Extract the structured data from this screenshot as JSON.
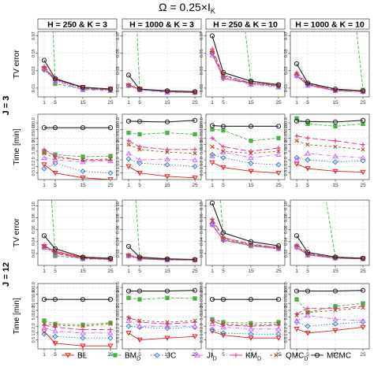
{
  "chart_data": {
    "type": "line",
    "title": "Ω = 0.25×I",
    "title_subscript": "K",
    "x": [
      1,
      5,
      15,
      25
    ],
    "x_ticks": [
      "1",
      "5",
      "15",
      "25"
    ],
    "columns": [
      "H = 250 & K = 3",
      "H = 1000 & K = 3",
      "H = 250 & K = 10",
      "H = 1000 & K = 10"
    ],
    "row_groups": [
      {
        "label": "J = 3",
        "rows": [
          0,
          1
        ]
      },
      {
        "label": "J = 12",
        "rows": [
          2,
          3
        ]
      }
    ],
    "rows": [
      {
        "metric": "tv",
        "ylabel": "TV error",
        "scale": "linear",
        "ylim": [
          0.0,
          0.075
        ],
        "ticks": [
          0.01,
          0.03,
          0.05,
          0.07
        ],
        "tick_labels": [
          "0.01",
          "0.03",
          "0.05",
          "0.07"
        ]
      },
      {
        "metric": "time",
        "ylabel": "Time [min]",
        "scale": "log",
        "ylim": [
          0.25,
          250
        ],
        "ticks": [
          0.5,
          1,
          2,
          5,
          10,
          20,
          50,
          100
        ],
        "tick_labels": [
          "0.5",
          "1.0",
          "2.0",
          "5.0",
          "10.0",
          "20.0",
          "50.0",
          "100.0"
        ]
      },
      {
        "metric": "tv",
        "ylabel": "TV error",
        "scale": "linear",
        "ylim": [
          0.0,
          0.11
        ],
        "ticks": [
          0.02,
          0.04,
          0.06,
          0.08,
          0.1
        ],
        "tick_labels": [
          "0.02",
          "0.04",
          "0.06",
          "0.08",
          "0.10"
        ]
      },
      {
        "metric": "time",
        "ylabel": "Time [min]",
        "scale": "log",
        "ylim": [
          0.2,
          150
        ],
        "ticks": [
          0.5,
          1,
          2,
          5,
          10,
          20,
          50,
          100
        ],
        "tick_labels": [
          "0.5",
          "1.0",
          "2.0",
          "5.0",
          "10.0",
          "20.0",
          "50.0",
          "100.0"
        ]
      }
    ],
    "series_styles": [
      {
        "name": "BL",
        "color": "#e41a1c",
        "dash": "",
        "marker": "triangle-down"
      },
      {
        "name": "BM",
        "sub": "D",
        "color": "#4daf4a",
        "dash": "4 2",
        "marker": "square"
      },
      {
        "name": "JC",
        "color": "#377eb8",
        "dash": "1.5 2",
        "marker": "diamond"
      },
      {
        "name": "JI",
        "sub": "D",
        "color": "#cc66ff",
        "dash": "5 2 1 2",
        "marker": "triangle-up"
      },
      {
        "name": "KM",
        "sub": "D",
        "color": "#e7298a",
        "dash": "7 3",
        "marker": "plus"
      },
      {
        "name": "QMC",
        "sub": "D",
        "color": "#a65628",
        "dash": "3 3",
        "marker": "cross"
      },
      {
        "name": "MCMC",
        "color": "#222222",
        "dash": "",
        "marker": "circle"
      }
    ],
    "panels": [
      [
        [
          [
            0.032,
            0.02,
            0.011,
            0.009
          ],
          [
            0.32,
            0.015,
            0.009,
            0.008
          ],
          [
            0.031,
            0.019,
            0.009,
            0.008
          ],
          [
            0.033,
            0.018,
            0.008,
            0.007
          ],
          [
            0.035,
            0.02,
            0.01,
            0.008
          ],
          [
            0.033,
            0.021,
            0.01,
            0.008
          ],
          [
            0.042,
            0.021,
            0.011,
            0.009
          ]
        ],
        [
          [
            0.013,
            0.009,
            0.006,
            0.005
          ],
          [
            0.3,
            0.008,
            0.006,
            0.005
          ],
          [
            0.013,
            0.008,
            0.006,
            0.005
          ],
          [
            0.013,
            0.008,
            0.005,
            0.005
          ],
          [
            0.014,
            0.009,
            0.006,
            0.005
          ],
          [
            0.013,
            0.009,
            0.006,
            0.005
          ],
          [
            0.025,
            0.009,
            0.007,
            0.006
          ]
        ],
        [
          [
            0.05,
            0.021,
            0.016,
            0.013
          ],
          [
            0.3,
            0.3,
            0.018,
            0.013
          ],
          [
            0.05,
            0.023,
            0.015,
            0.012
          ],
          [
            0.048,
            0.022,
            0.014,
            0.011
          ],
          [
            0.055,
            0.025,
            0.016,
            0.013
          ],
          [
            0.052,
            0.024,
            0.016,
            0.012
          ],
          [
            0.07,
            0.028,
            0.018,
            0.014
          ]
        ],
        [
          [
            0.024,
            0.014,
            0.007,
            0.006
          ],
          [
            0.3,
            0.3,
            0.3,
            0.008
          ],
          [
            0.025,
            0.014,
            0.007,
            0.006
          ],
          [
            0.024,
            0.013,
            0.007,
            0.006
          ],
          [
            0.028,
            0.015,
            0.008,
            0.006
          ],
          [
            0.026,
            0.015,
            0.008,
            0.006
          ],
          [
            0.038,
            0.016,
            0.009,
            0.007
          ]
        ]
      ],
      [
        [
          [
            1.2,
            0.5,
            0.3,
            0.25
          ],
          [
            4.5,
            3.5,
            2.8,
            3.0
          ],
          [
            0.8,
            1.4,
            0.6,
            0.5
          ],
          [
            2.5,
            2.0,
            1.6,
            1.8
          ],
          [
            6.0,
            3.0,
            1.9,
            2.0
          ],
          [
            4.0,
            2.5,
            2.0,
            2.2
          ],
          [
            60,
            60,
            60,
            60
          ]
        ],
        [
          [
            1.0,
            0.5,
            0.35,
            0.3
          ],
          [
            35,
            30,
            35,
            30
          ],
          [
            2.2,
            1.4,
            1.2,
            1.0
          ],
          [
            4.0,
            2.0,
            2.2,
            2.0
          ],
          [
            15,
            8,
            6,
            6
          ],
          [
            10,
            6,
            4.5,
            4.0
          ],
          [
            120,
            115,
            110,
            130
          ]
        ],
        [
          [
            1.5,
            0.9,
            0.6,
            0.5
          ],
          [
            50,
            45,
            15,
            20
          ],
          [
            3.5,
            2.5,
            1.4,
            1.2
          ],
          [
            3.0,
            4.5,
            2.5,
            3.5
          ],
          [
            20,
            8,
            5,
            7
          ],
          [
            8,
            5,
            4,
            5
          ],
          [
            75,
            70,
            70,
            70
          ]
        ],
        [
          [
            1.3,
            0.8,
            0.6,
            0.55
          ],
          [
            160,
            90,
            70,
            90
          ],
          [
            2.5,
            2.0,
            1.6,
            1.8
          ],
          [
            2.0,
            4.0,
            3.0,
            2.5
          ],
          [
            25,
            20,
            15,
            10
          ],
          [
            15,
            10,
            8,
            6
          ],
          [
            120,
            115,
            110,
            130
          ]
        ]
      ],
      [
        [
          [
            0.032,
            0.024,
            0.013,
            0.011
          ],
          [
            0.3,
            0.016,
            0.012,
            0.011
          ],
          [
            0.03,
            0.021,
            0.011,
            0.01
          ],
          [
            0.03,
            0.02,
            0.011,
            0.01
          ],
          [
            0.034,
            0.022,
            0.012,
            0.01
          ],
          [
            0.032,
            0.021,
            0.012,
            0.01
          ],
          [
            0.05,
            0.028,
            0.014,
            0.012
          ]
        ],
        [
          [
            0.016,
            0.012,
            0.01,
            0.009
          ],
          [
            0.3,
            0.011,
            0.009,
            0.009
          ],
          [
            0.016,
            0.011,
            0.009,
            0.009
          ],
          [
            0.016,
            0.011,
            0.009,
            0.009
          ],
          [
            0.018,
            0.012,
            0.01,
            0.009
          ],
          [
            0.017,
            0.012,
            0.01,
            0.009
          ],
          [
            0.032,
            0.014,
            0.011,
            0.01
          ]
        ],
        [
          [
            0.068,
            0.043,
            0.033,
            0.028
          ],
          [
            0.3,
            0.045,
            0.034,
            0.03
          ],
          [
            0.07,
            0.042,
            0.033,
            0.028
          ],
          [
            0.069,
            0.043,
            0.033,
            0.028
          ],
          [
            0.078,
            0.047,
            0.036,
            0.03
          ],
          [
            0.075,
            0.046,
            0.035,
            0.029
          ],
          [
            0.105,
            0.055,
            0.04,
            0.033
          ]
        ],
        [
          [
            0.03,
            0.018,
            0.012,
            0.011
          ],
          [
            0.3,
            0.3,
            0.014,
            0.012
          ],
          [
            0.032,
            0.018,
            0.012,
            0.011
          ],
          [
            0.031,
            0.017,
            0.012,
            0.011
          ],
          [
            0.035,
            0.02,
            0.013,
            0.012
          ],
          [
            0.033,
            0.019,
            0.013,
            0.011
          ],
          [
            0.05,
            0.022,
            0.014,
            0.012
          ]
        ]
      ],
      [
        [
          [
            1.2,
            0.35,
            0.27,
            0.27
          ],
          [
            3.5,
            2.5,
            2.3,
            2.8
          ],
          [
            0.9,
            0.7,
            0.6,
            0.6
          ],
          [
            1.7,
            1.2,
            1.0,
            1.0
          ],
          [
            2.2,
            1.8,
            1.4,
            1.4
          ],
          [
            2.6,
            2.2,
            2.0,
            2.5
          ],
          [
            30,
            30,
            30,
            30
          ]
        ],
        [
          [
            1.0,
            0.5,
            0.6,
            0.7
          ],
          [
            35,
            30,
            35,
            33
          ],
          [
            2.0,
            1.8,
            1.6,
            1.8
          ],
          [
            3.5,
            2.0,
            2.0,
            2.0
          ],
          [
            5.0,
            3.0,
            2.5,
            3.0
          ],
          [
            4.5,
            3.5,
            3.0,
            3.5
          ],
          [
            70,
            70,
            70,
            75
          ]
        ],
        [
          [
            1.2,
            0.8,
            0.6,
            0.6
          ],
          [
            4.0,
            3.0,
            2.7,
            3.0
          ],
          [
            1.4,
            1.0,
            0.9,
            0.9
          ],
          [
            2.5,
            1.8,
            1.5,
            1.5
          ],
          [
            3.5,
            2.2,
            2.0,
            2.2
          ],
          [
            3.0,
            2.5,
            2.2,
            2.5
          ],
          [
            30,
            30,
            30,
            30
          ]
        ],
        [
          [
            1.5,
            1.0,
            1.3,
            1.8
          ],
          [
            30,
            8,
            15,
            20
          ],
          [
            3.0,
            2.0,
            2.5,
            3.0
          ],
          [
            3.5,
            6.0,
            4.0,
            3.5
          ],
          [
            7.0,
            12,
            12,
            15
          ],
          [
            6.0,
            8,
            10,
            13
          ],
          [
            70,
            70,
            70,
            75
          ]
        ]
      ]
    ],
    "legend": {
      "placement": "bottom",
      "entries": [
        {
          "label": "BL",
          "sub": ""
        },
        {
          "label": "BM",
          "sub": "D"
        },
        {
          "label": "JC",
          "sub": ""
        },
        {
          "label": "JI",
          "sub": "D"
        },
        {
          "label": "KM",
          "sub": "D"
        },
        {
          "label": "QMC",
          "sub": "D"
        },
        {
          "label": "MCMC",
          "sub": ""
        }
      ]
    },
    "grid": true
  }
}
